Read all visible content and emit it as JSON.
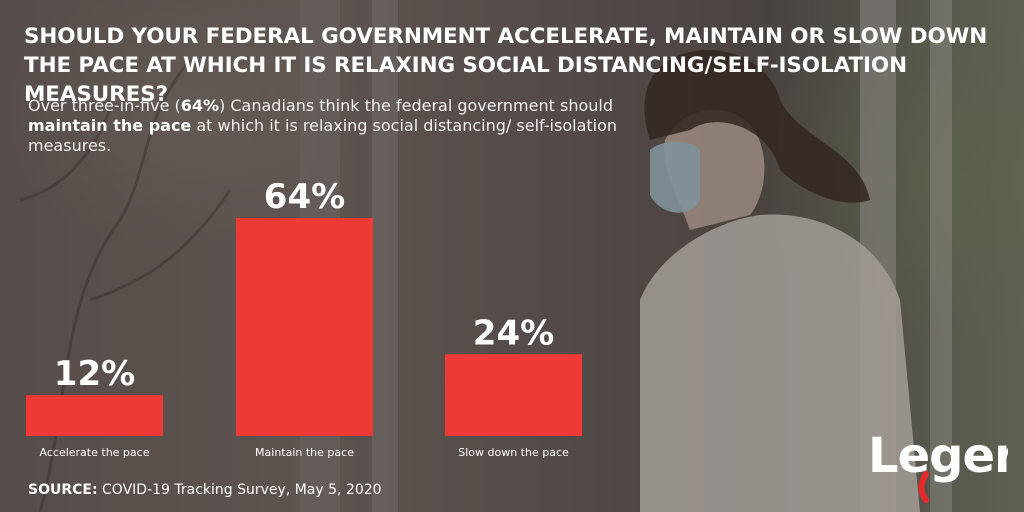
{
  "header": {
    "title": "SHOULD YOUR FEDERAL GOVERNMENT ACCELERATE, MAINTAIN OR SLOW DOWN THE PACE AT WHICH IT IS RELAXING SOCIAL DISTANCING/SELF-ISOLATION MEASURES?",
    "subtitle": {
      "part1": "Over three-in-five (",
      "bold1": "64%",
      "part2": ") Canadians think the federal government should ",
      "bold2": "maintain the pace",
      "part3": " at which it is relaxing social distancing/ self-isolation measures."
    }
  },
  "chart_data": {
    "type": "bar",
    "categories": [
      "Accelerate the pace",
      "Maintain the pace",
      "Slow down the pace"
    ],
    "values": [
      12,
      64,
      24
    ],
    "value_labels": [
      "12%",
      "64%",
      "24%"
    ],
    "bar_color": "#ee3a35",
    "ylim": [
      0,
      64
    ],
    "grid": false,
    "legend": "none"
  },
  "footer": {
    "source_label": "SOURCE:",
    "source_text": " COVID-19 Tracking Survey, May 5, 2020"
  },
  "brand": {
    "logo_icon": "leger-logo",
    "logo_text": "Leger",
    "accent": "#e8282b"
  }
}
